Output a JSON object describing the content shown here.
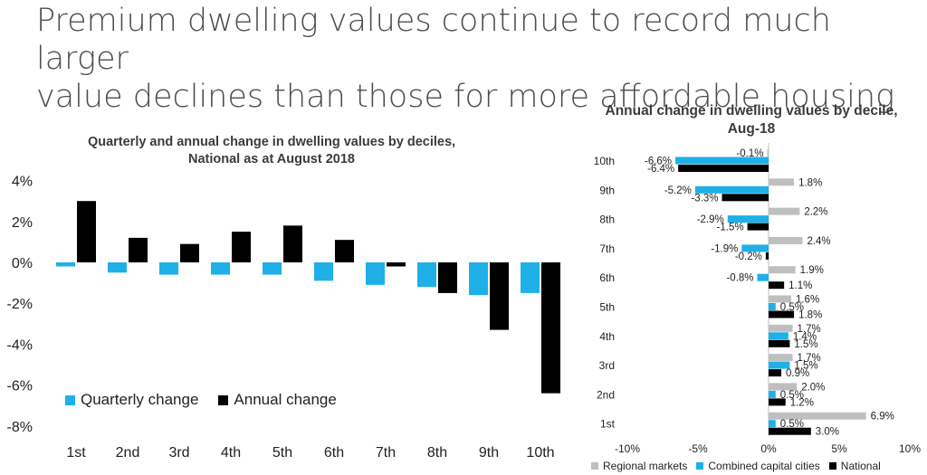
{
  "slide": {
    "title_line1": "Premium dwelling values continue to record much larger",
    "title_line2": "value declines than those for more affordable housing"
  },
  "chart_data": [
    {
      "type": "bar",
      "title_line1": "Quarterly and annual change in dwelling values by deciles,",
      "title_line2": "National as at August 2018",
      "orientation": "vertical",
      "categories": [
        "1st",
        "2nd",
        "3rd",
        "4th",
        "5th",
        "6th",
        "7th",
        "8th",
        "9th",
        "10th"
      ],
      "series": [
        {
          "name": "Quarterly change",
          "color": "#1eb0e6",
          "values": [
            -0.2,
            -0.5,
            -0.6,
            -0.6,
            -0.6,
            -0.9,
            -1.1,
            -1.2,
            -1.6,
            -1.5
          ]
        },
        {
          "name": "Annual change",
          "color": "#000000",
          "values": [
            3.0,
            1.2,
            0.9,
            1.5,
            1.8,
            1.1,
            -0.2,
            -1.5,
            -3.3,
            -6.4
          ]
        }
      ],
      "ylim": [
        -8,
        4
      ],
      "yticks": [
        4,
        2,
        0,
        -2,
        -4,
        -6,
        -8
      ],
      "ytick_labels": [
        "4%",
        "2%",
        "0%",
        "-2%",
        "-4%",
        "-6%",
        "-8%"
      ],
      "legend": "bottom-left",
      "grid": false
    },
    {
      "type": "bar",
      "title_line1": "Annual change in dwelling values by decile,",
      "title_line2": "Aug-18",
      "orientation": "horizontal",
      "categories": [
        "10th",
        "9th",
        "8th",
        "7th",
        "6th",
        "5th",
        "4th",
        "3rd",
        "2nd",
        "1st"
      ],
      "series": [
        {
          "name": "Regional markets",
          "color": "#bfbfbf",
          "values": [
            -0.1,
            1.8,
            2.2,
            2.4,
            1.9,
            1.6,
            1.7,
            1.7,
            2.0,
            6.9
          ],
          "labels": [
            "-0.1%",
            "1.8%",
            "2.2%",
            "2.4%",
            "1.9%",
            "1.6%",
            "1.7%",
            "1.7%",
            "2.0%",
            "6.9%"
          ]
        },
        {
          "name": "Combined capital cities",
          "color": "#1eb0e6",
          "values": [
            -6.6,
            -5.2,
            -2.9,
            -1.9,
            -0.8,
            0.5,
            1.4,
            1.5,
            0.5,
            0.5
          ],
          "labels": [
            "-6.6%",
            "-5.2%",
            "-2.9%",
            "-1.9%",
            "-0.8%",
            "0.5%",
            "1.4%",
            "1.5%",
            "0.5%",
            "0.5%"
          ]
        },
        {
          "name": "National",
          "color": "#000000",
          "values": [
            -6.4,
            -3.3,
            -1.5,
            -0.2,
            1.1,
            1.8,
            1.5,
            0.9,
            1.2,
            3.0
          ],
          "labels": [
            "-6.4%",
            "-3.3%",
            "-1.5%",
            "-0.2%",
            "1.1%",
            "1.8%",
            "1.5%",
            "0.9%",
            "1.2%",
            "3.0%"
          ]
        }
      ],
      "xlim": [
        -10,
        10
      ],
      "xticks": [
        -10,
        -5,
        0,
        5,
        10
      ],
      "xtick_labels": [
        "-10%",
        "-5%",
        "0%",
        "5%",
        "10%"
      ],
      "legend": "bottom",
      "grid": false
    }
  ]
}
